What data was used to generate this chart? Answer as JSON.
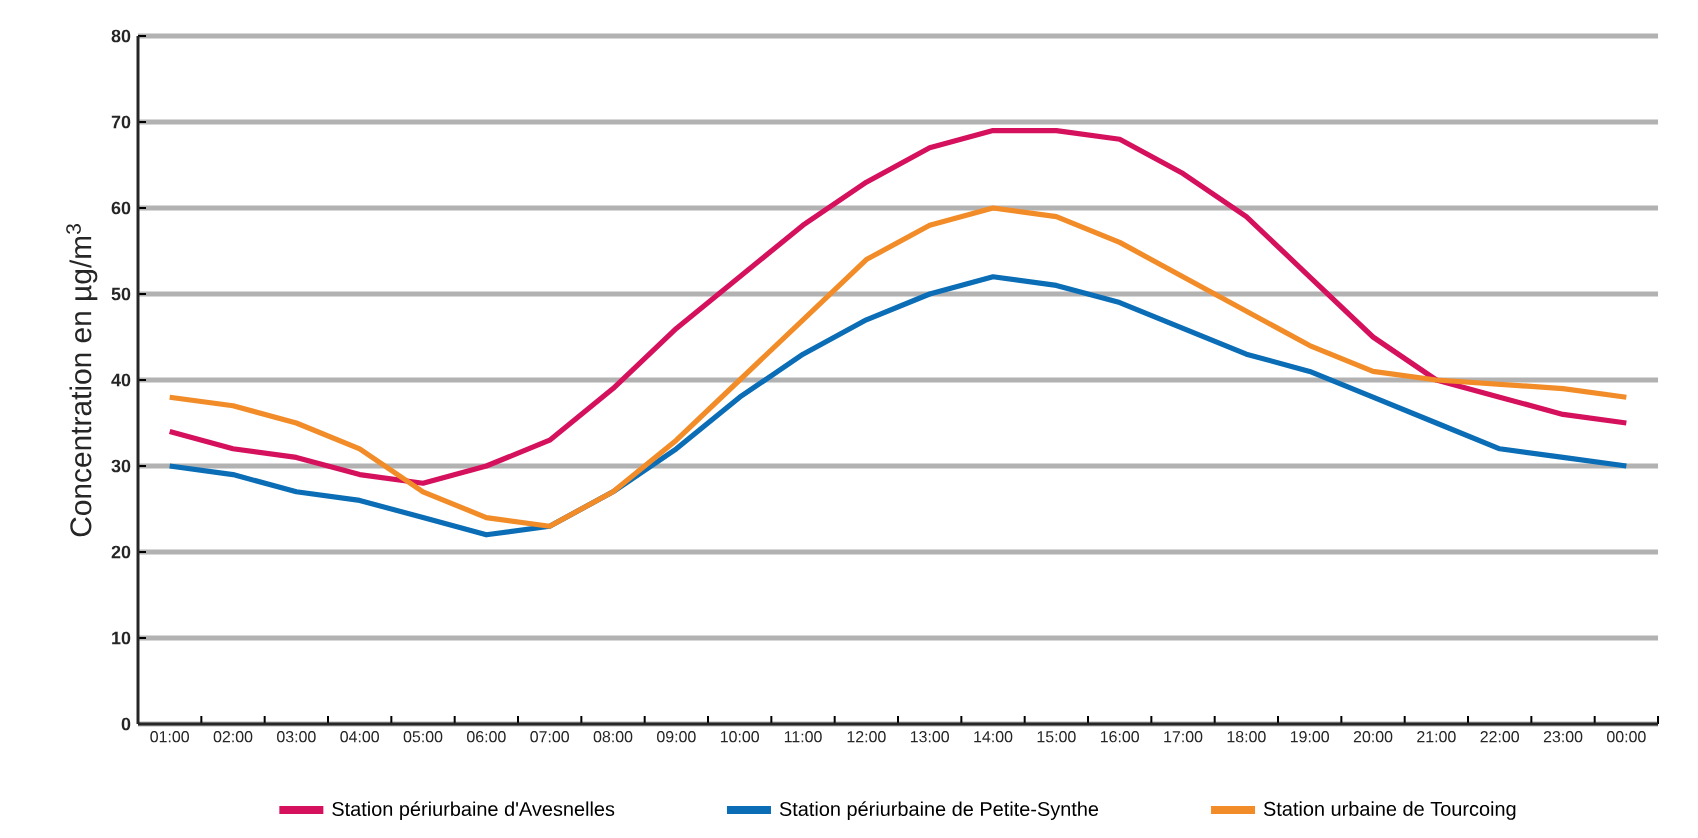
{
  "chart_data": {
    "type": "line",
    "ylabel": "Concentration en µg/m$^{3}$",
    "categories": [
      "01:00",
      "02:00",
      "03:00",
      "04:00",
      "05:00",
      "06:00",
      "07:00",
      "08:00",
      "09:00",
      "10:00",
      "11:00",
      "12:00",
      "13:00",
      "14:00",
      "15:00",
      "16:00",
      "17:00",
      "18:00",
      "19:00",
      "20:00",
      "21:00",
      "22:00",
      "23:00",
      "00:00"
    ],
    "series": [
      {
        "name": "Station périurbaine d'Avesnelles",
        "color": "#d5105c",
        "values": [
          34,
          32,
          31,
          29,
          28,
          30,
          33,
          39,
          46,
          52,
          58,
          63,
          67,
          69,
          69,
          68,
          64,
          59,
          52,
          45,
          40,
          38,
          36,
          35
        ]
      },
      {
        "name": "Station périurbaine de Petite-Synthe",
        "color": "#0a6db5",
        "values": [
          30,
          29,
          27,
          26,
          24,
          22,
          23,
          27,
          32,
          38,
          43,
          47,
          50,
          52,
          51,
          49,
          46,
          43,
          41,
          38,
          35,
          32,
          31,
          30
        ]
      },
      {
        "name": "Station urbaine de Tourcoing",
        "color": "#f28c28",
        "values": [
          38,
          37,
          35,
          32,
          27,
          24,
          23,
          27,
          33,
          40,
          47,
          54,
          58,
          60,
          59,
          56,
          52,
          48,
          44,
          41,
          40,
          39.5,
          39,
          38
        ]
      }
    ],
    "ylim": [
      0,
      80
    ],
    "yticks": [
      0,
      10,
      20,
      30,
      40,
      50,
      60,
      70,
      80
    ],
    "grid": "y",
    "legend": "bottom",
    "marker": "none",
    "line_style": "solid"
  }
}
